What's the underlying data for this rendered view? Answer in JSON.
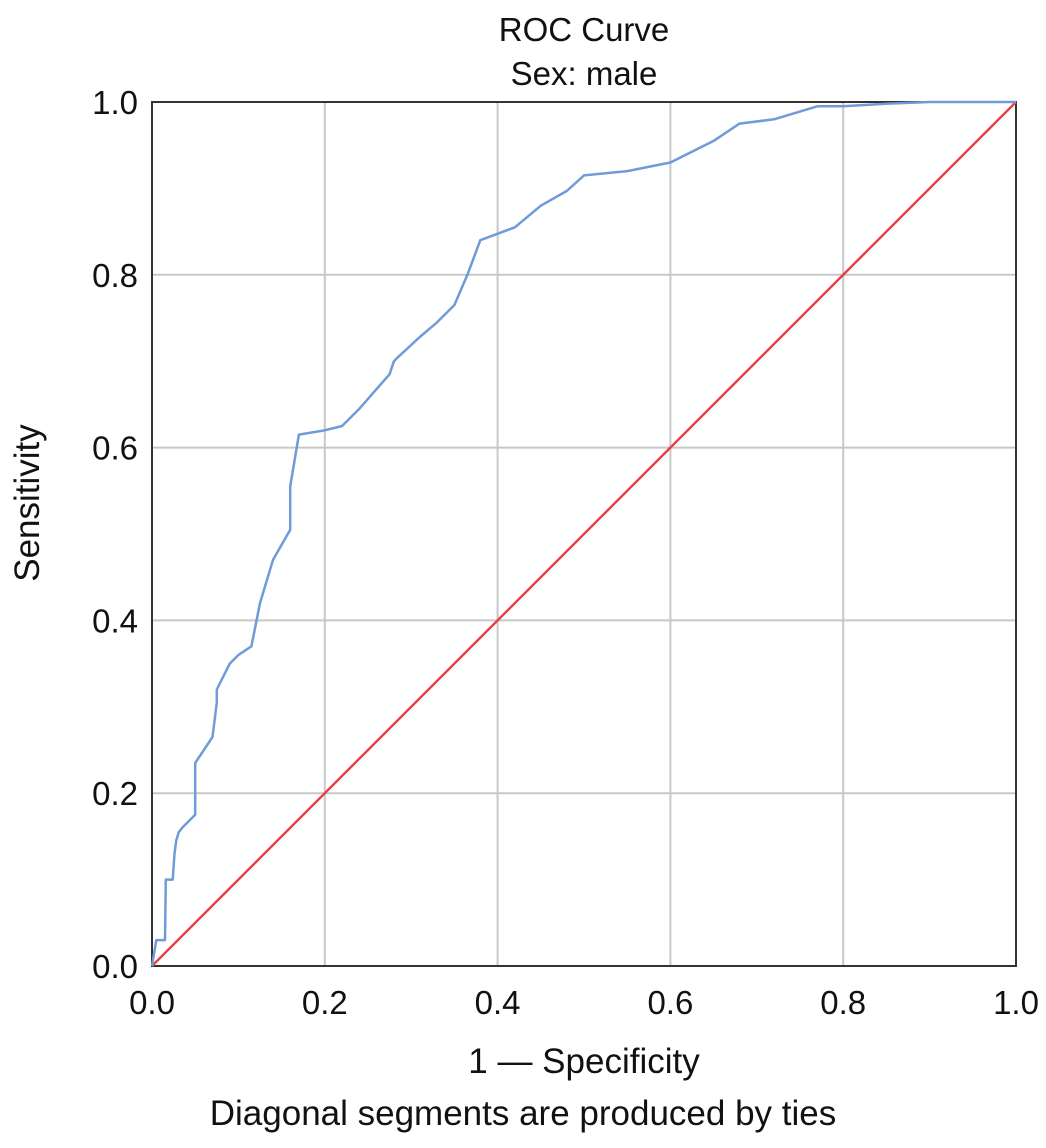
{
  "chart_data": {
    "type": "line",
    "title": "ROC Curve",
    "subtitle": "Sex: male",
    "xlabel": "1 — Specificity",
    "ylabel": "Sensitivity",
    "footnote": "Diagonal segments are produced by ties",
    "xlim": [
      0,
      1
    ],
    "ylim": [
      0,
      1
    ],
    "x_ticks": [
      "0.0",
      "0.2",
      "0.4",
      "0.6",
      "0.8",
      "1.0"
    ],
    "y_ticks": [
      "0.0",
      "0.2",
      "0.4",
      "0.6",
      "0.8",
      "1.0"
    ],
    "grid": true,
    "colors": {
      "roc": "#6f9bd8",
      "reference": "#e8404a",
      "grid": "#c8c8c8",
      "axis": "#333333"
    },
    "series": [
      {
        "key": "roc",
        "x": [
          0.0,
          0.005,
          0.015,
          0.016,
          0.016,
          0.024,
          0.026,
          0.028,
          0.031,
          0.035,
          0.05,
          0.05,
          0.07,
          0.075,
          0.075,
          0.09,
          0.1,
          0.115,
          0.125,
          0.14,
          0.16,
          0.16,
          0.17,
          0.2,
          0.22,
          0.24,
          0.275,
          0.28,
          0.285,
          0.31,
          0.33,
          0.35,
          0.365,
          0.38,
          0.42,
          0.45,
          0.48,
          0.5,
          0.55,
          0.6,
          0.65,
          0.68,
          0.72,
          0.77,
          0.8,
          0.85,
          0.9,
          1.0
        ],
        "y": [
          0.0,
          0.03,
          0.03,
          0.1,
          0.1,
          0.1,
          0.13,
          0.145,
          0.155,
          0.16,
          0.175,
          0.235,
          0.265,
          0.305,
          0.32,
          0.35,
          0.36,
          0.37,
          0.42,
          0.47,
          0.505,
          0.555,
          0.615,
          0.62,
          0.625,
          0.645,
          0.685,
          0.7,
          0.705,
          0.728,
          0.745,
          0.765,
          0.8,
          0.84,
          0.855,
          0.88,
          0.897,
          0.915,
          0.92,
          0.93,
          0.955,
          0.975,
          0.98,
          0.995,
          0.995,
          0.998,
          1.0,
          1.0
        ]
      },
      {
        "key": "reference",
        "x": [
          0.0,
          1.0
        ],
        "y": [
          0.0,
          1.0
        ]
      }
    ]
  }
}
